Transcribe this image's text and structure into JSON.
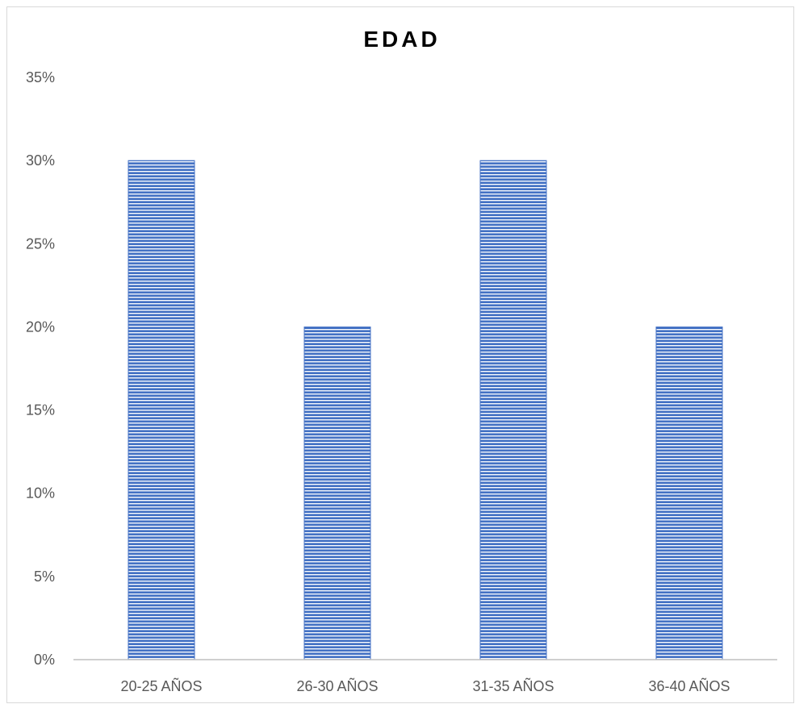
{
  "chart_data": {
    "type": "bar",
    "title": "EDAD",
    "categories": [
      "20-25 AÑOS",
      "26-30 AÑOS",
      "31-35 AÑOS",
      "36-40 AÑOS"
    ],
    "values": [
      30,
      20,
      30,
      20
    ],
    "value_unit": "%",
    "ylim": [
      0,
      35
    ],
    "ytick_step": 5,
    "grid": false,
    "legend": "none",
    "colors": {
      "bar_fill": "#4472c4",
      "bar_stripe": "#ffffff",
      "axis": "#bfbfbf",
      "text": "#595959"
    }
  }
}
